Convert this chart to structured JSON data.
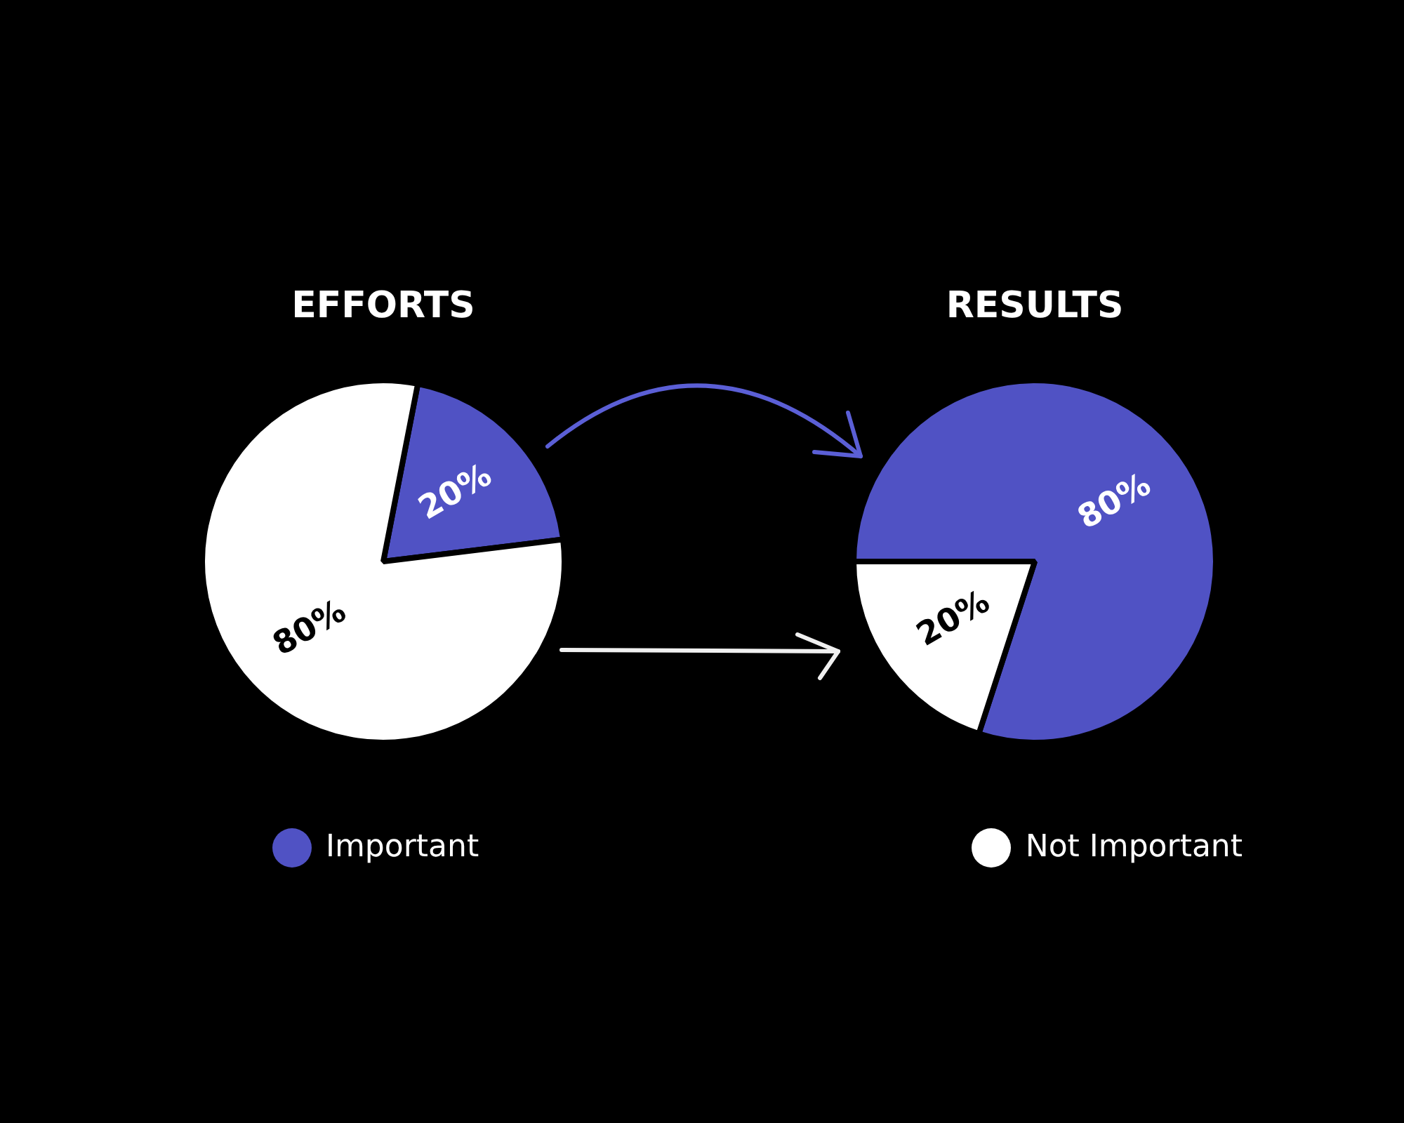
{
  "chart_data": [
    {
      "type": "pie",
      "title": "EFFORTS",
      "categories": [
        "Important",
        "Not Important"
      ],
      "values": [
        20,
        80
      ],
      "colors": [
        "#5052c4",
        "#ffffff"
      ],
      "value_labels": [
        "20%",
        "80%"
      ],
      "legend": "bottom"
    },
    {
      "type": "pie",
      "title": "RESULTS",
      "categories": [
        null,
        null
      ],
      "values": [
        80,
        20
      ],
      "colors": [
        "#5052c4",
        "#ffffff"
      ],
      "value_labels": [
        "80%",
        "20%"
      ]
    }
  ]
}
